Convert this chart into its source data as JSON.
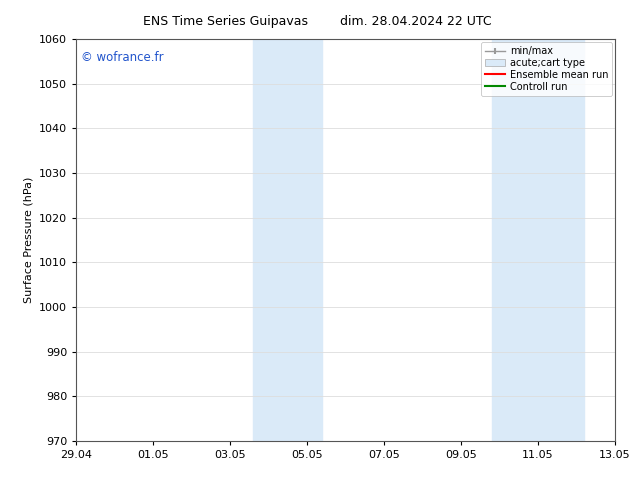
{
  "title_left": "ENS Time Series Guipavas",
  "title_right": "dim. 28.04.2024 22 UTC",
  "ylabel": "Surface Pressure (hPa)",
  "ylim": [
    970,
    1060
  ],
  "yticks": [
    970,
    980,
    990,
    1000,
    1010,
    1020,
    1030,
    1040,
    1050,
    1060
  ],
  "xtick_labels": [
    "29.04",
    "01.05",
    "03.05",
    "05.05",
    "07.05",
    "09.05",
    "11.05",
    "13.05"
  ],
  "xtick_positions": [
    0,
    2,
    4,
    6,
    8,
    10,
    12,
    14
  ],
  "xlim": [
    0,
    14
  ],
  "shaded_regions": [
    {
      "x_start": 4.6,
      "x_end": 6.4
    },
    {
      "x_start": 10.8,
      "x_end": 13.2
    }
  ],
  "shaded_color": "#daeaf8",
  "watermark": "© wofrance.fr",
  "watermark_color": "#2255cc",
  "background_color": "#ffffff",
  "plot_bg_color": "#ffffff",
  "grid_color": "#dddddd",
  "legend_entries": [
    "min/max",
    "acute;cart type",
    "Ensemble mean run",
    "Controll run"
  ],
  "legend_colors_line": [
    "#aaaaaa",
    "#bbccdd",
    "#ff0000",
    "#00aa00"
  ],
  "title_fontsize": 9,
  "axis_fontsize": 8,
  "tick_fontsize": 8
}
